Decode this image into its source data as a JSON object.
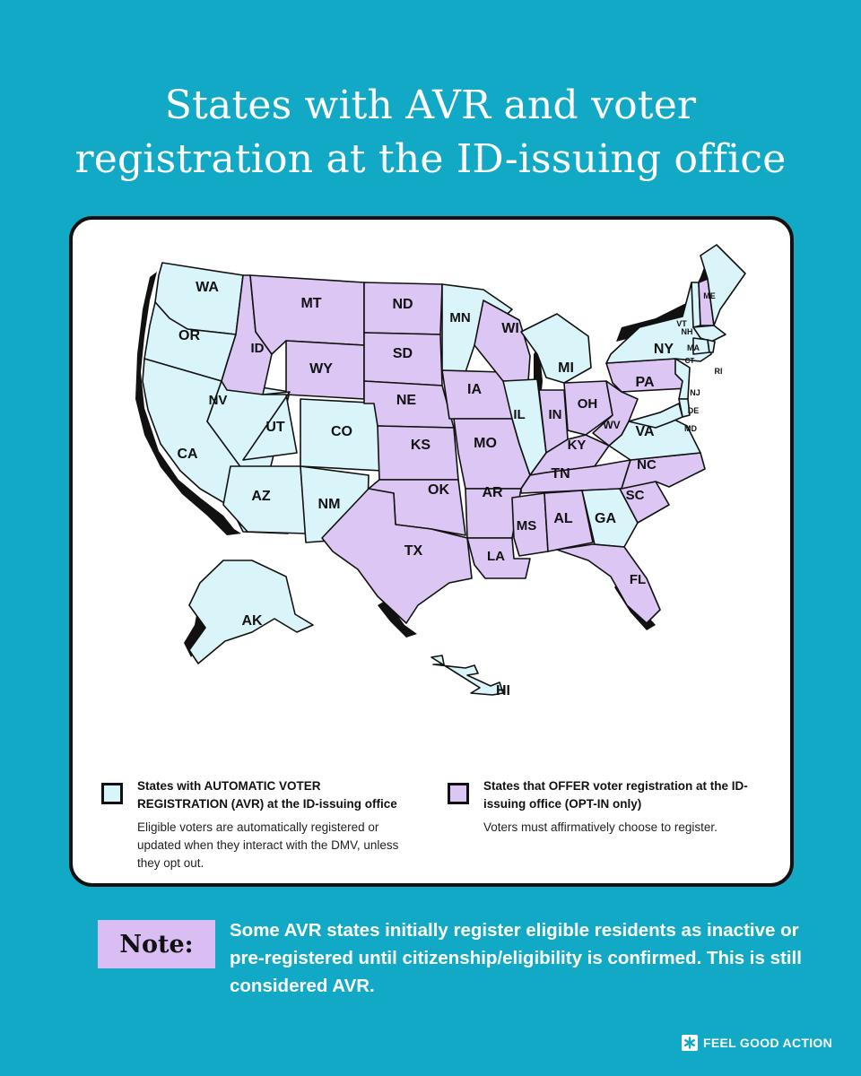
{
  "title": {
    "line1": "States with  AVR and voter",
    "line2": "registration at the ID-issuing office"
  },
  "colors": {
    "background": "#12a9c6",
    "avr": "#d9f5fa",
    "opt_in": "#dcc6f4",
    "outline": "#111111"
  },
  "map": {
    "avr_states": [
      "WA",
      "OR",
      "CA",
      "NV",
      "UT",
      "CO",
      "AZ",
      "NM",
      "MN",
      "MI",
      "IL",
      "GA",
      "VA",
      "NY",
      "VT",
      "ME",
      "MA",
      "CT",
      "RI",
      "NJ",
      "DE",
      "MD",
      "AK",
      "HI"
    ],
    "opt_in_states": [
      "ID",
      "MT",
      "WY",
      "ND",
      "SD",
      "NE",
      "KS",
      "OK",
      "TX",
      "IA",
      "MO",
      "AR",
      "LA",
      "WI",
      "IN",
      "OH",
      "KY",
      "WV",
      "TN",
      "MS",
      "AL",
      "FL",
      "SC",
      "NC",
      "PA",
      "NH"
    ],
    "labels": {
      "WA": "WA",
      "OR": "OR",
      "CA": "CA",
      "NV": "NV",
      "ID": "ID",
      "MT": "MT",
      "WY": "WY",
      "UT": "UT",
      "CO": "CO",
      "AZ": "AZ",
      "NM": "NM",
      "ND": "ND",
      "SD": "SD",
      "NE": "NE",
      "KS": "KS",
      "OK": "OK",
      "TX": "TX",
      "MN": "MN",
      "IA": "IA",
      "MO": "MO",
      "AR": "AR",
      "LA": "LA",
      "WI": "WI",
      "IL": "IL",
      "MI": "MI",
      "IN": "IN",
      "OH": "OH",
      "KY": "KY",
      "TN": "TN",
      "MS": "MS",
      "AL": "AL",
      "GA": "GA",
      "FL": "FL",
      "SC": "SC",
      "NC": "NC",
      "VA": "VA",
      "WV": "WV",
      "PA": "PA",
      "NY": "NY",
      "VT": "VT",
      "NH": "NH",
      "ME": "ME",
      "MA": "MA",
      "CT": "CT",
      "RI": "RI",
      "NJ": "NJ",
      "DE": "DE",
      "MD": "MD",
      "AK": "AK",
      "HI": "HI"
    }
  },
  "legend": {
    "avr": {
      "title": "States with AUTOMATIC VOTER REGISTRATION (AVR) at the ID-issuing office",
      "description": "Eligible voters are automatically registered or updated when they interact with the DMV, unless they opt out."
    },
    "opt_in": {
      "title": "States that OFFER voter registration at the ID-issuing office (OPT-IN only)",
      "description": "Voters must affirmatively choose to register."
    }
  },
  "note": {
    "label": "Note:",
    "text": "Some AVR states initially register eligible residents as inactive or pre-registered until citizenship/eligibility is confirmed. This is still considered AVR."
  },
  "brand": {
    "name": "FEEL GOOD ACTION",
    "icon": "asterisk-logo-icon"
  }
}
